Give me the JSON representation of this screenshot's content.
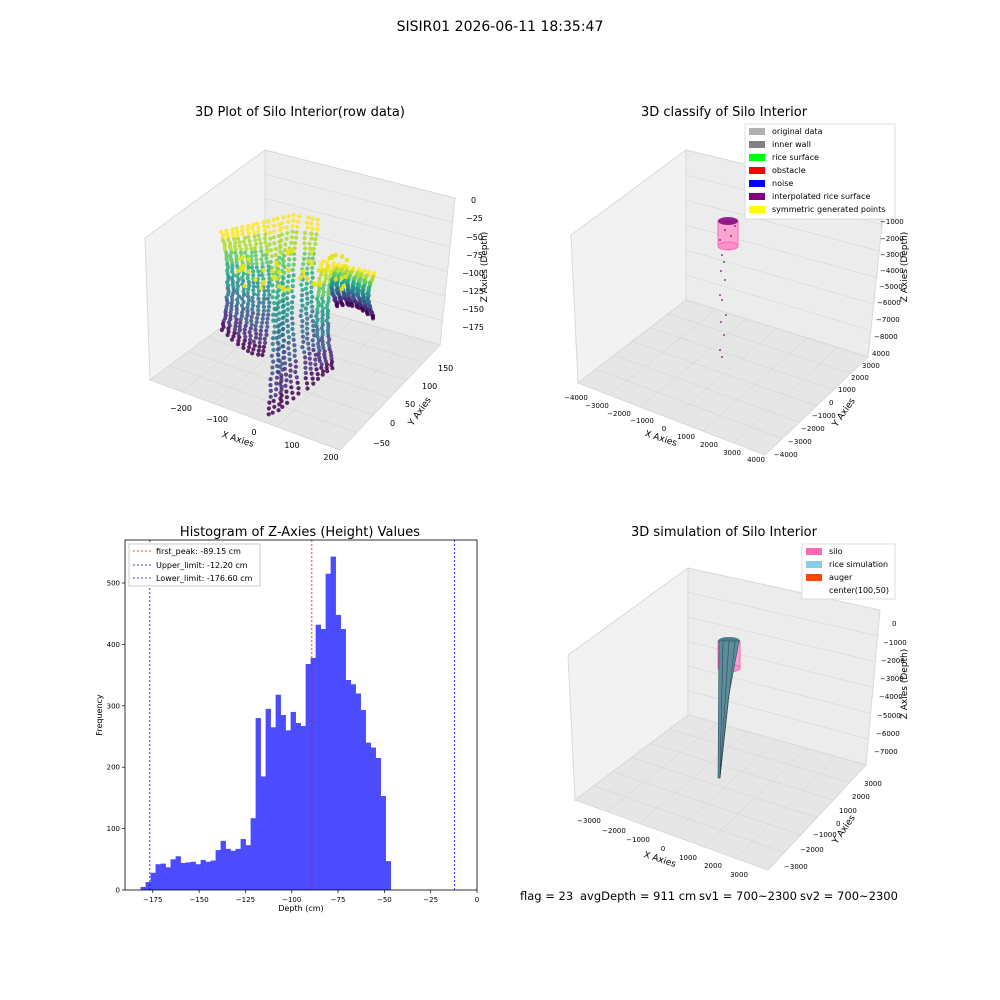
{
  "suptitle": "SISIR01 2026-06-11 18:35:47",
  "colors": {
    "hist_bar": "#4b4bff",
    "peak_line": "#ff0000",
    "limit_line": "#0000ff",
    "pane": "#f2f2f2",
    "grid": "#cccccc",
    "silo": "#ff69b4",
    "rice_sim": "#87ceeb",
    "auger": "#ff4500"
  },
  "status_line": {
    "flag": "flag = 23",
    "avg_depth": "avgDepth = 911 cm",
    "sv1": "sv1 = 700~2300",
    "sv2": "sv2 = 700~2300"
  },
  "chart_data": [
    {
      "type": "scatter",
      "projection": "3d",
      "title": "3D Plot of Silo Interior(row data)",
      "xlabel": "X Axies",
      "ylabel": "Y Axies",
      "zlabel": "Z Axies (Depth)",
      "x_ticks": [
        "−200",
        "−100",
        "0",
        "100",
        "200"
      ],
      "y_ticks": [
        "−50",
        "0",
        "50",
        "100",
        "150"
      ],
      "z_ticks": [
        "0",
        "−25",
        "−50",
        "−75",
        "−100",
        "−125",
        "−150",
        "−175"
      ],
      "colormap": "viridis",
      "zlim": [
        -190,
        0
      ],
      "grid": true
    },
    {
      "type": "scatter",
      "projection": "3d",
      "title": "3D classify of Silo Interior",
      "xlabel": "X Axies",
      "ylabel": "Y Axies",
      "zlabel": "Z Axies (Depth)",
      "x_ticks": [
        "−4000",
        "−3000",
        "−2000",
        "−1000",
        "0",
        "1000",
        "2000",
        "3000",
        "4000"
      ],
      "y_ticks": [
        "−4000",
        "−3000",
        "−2000",
        "−1000",
        "0",
        "1000",
        "2000",
        "3000",
        "4000"
      ],
      "z_ticks": [
        "−1000",
        "−2000",
        "−3000",
        "−4000",
        "−5000",
        "−6000",
        "−7000",
        "−8000"
      ],
      "legend_position": "top-right",
      "legend": [
        {
          "label": "original data",
          "color": "#b0b0b0"
        },
        {
          "label": "inner wall",
          "color": "#808080"
        },
        {
          "label": "rice surface",
          "color": "#00ff00"
        },
        {
          "label": "obstacle",
          "color": "#ff0000"
        },
        {
          "label": "noise",
          "color": "#0000ff"
        },
        {
          "label": "interpolated rice surface",
          "color": "#800080"
        },
        {
          "label": "symmetric generated points",
          "color": "#ffff00"
        }
      ],
      "grid": true
    },
    {
      "type": "bar",
      "title": "Histogram of Z-Axies (Height) Values",
      "xlabel": "Depth (cm)",
      "ylabel": "Frequency",
      "xlim": [
        -190,
        0
      ],
      "ylim": [
        0,
        570
      ],
      "x_ticks": [
        -175,
        -150,
        -125,
        -100,
        -75,
        -50,
        -25,
        0
      ],
      "x_tick_labels": [
        "−175",
        "−150",
        "−125",
        "−100",
        "−75",
        "−50",
        "−25",
        "0"
      ],
      "y_ticks": [
        0,
        100,
        200,
        300,
        400,
        500
      ],
      "bin_start": -181.6,
      "bin_width": 2.7,
      "values": [
        5,
        13,
        28,
        42,
        43,
        37,
        50,
        55,
        44,
        45,
        46,
        42,
        49,
        46,
        48,
        65,
        80,
        67,
        64,
        67,
        83,
        73,
        117,
        280,
        185,
        295,
        265,
        318,
        285,
        260,
        290,
        272,
        267,
        368,
        378,
        432,
        425,
        515,
        543,
        448,
        425,
        342,
        335,
        320,
        293,
        240,
        232,
        215,
        153,
        47
      ],
      "vlines": [
        {
          "label": "first_peak: -89.15 cm",
          "x": -89.15,
          "color": "#ff0000"
        },
        {
          "label": "Upper_limit: -12.20 cm",
          "x": -12.2,
          "color": "#0000ff"
        },
        {
          "label": "Lower_limit: -176.60 cm",
          "x": -176.6,
          "color": "#0000ff"
        }
      ],
      "legend_position": "top-left"
    },
    {
      "type": "surface",
      "projection": "3d",
      "title": "3D simulation of Silo Interior",
      "xlabel": "X Axies",
      "ylabel": "Y Axies",
      "zlabel": "Z Axies (Depth)",
      "x_ticks": [
        "−3000",
        "−2000",
        "−1000",
        "0",
        "1000",
        "2000",
        "3000"
      ],
      "y_ticks": [
        "−3000",
        "−2000",
        "−1000",
        "0",
        "1000",
        "2000",
        "3000"
      ],
      "z_ticks": [
        "0",
        "−1000",
        "−2000",
        "−3000",
        "−4000",
        "−5000",
        "−6000",
        "−7000"
      ],
      "legend_position": "top-right",
      "legend": [
        {
          "label": "silo",
          "color": "#ff69b4"
        },
        {
          "label": "rice simulation",
          "color": "#87ceeb"
        },
        {
          "label": "auger",
          "color": "#ff4500"
        },
        {
          "label": "center(100,50)",
          "color": ""
        }
      ],
      "grid": true
    }
  ]
}
